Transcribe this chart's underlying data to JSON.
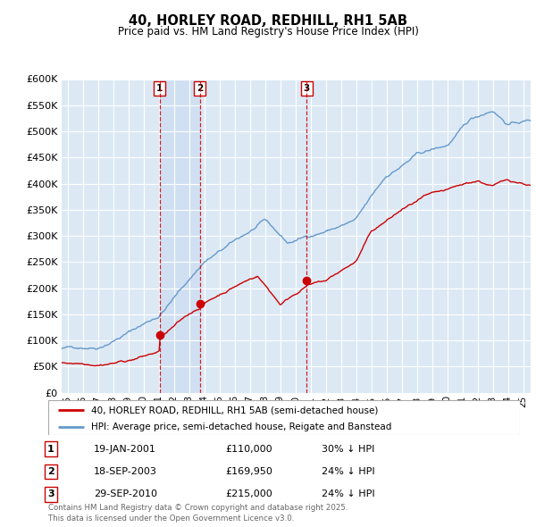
{
  "title": "40, HORLEY ROAD, REDHILL, RH1 5AB",
  "subtitle": "Price paid vs. HM Land Registry's House Price Index (HPI)",
  "legend_line1": "40, HORLEY ROAD, REDHILL, RH1 5AB (semi-detached house)",
  "legend_line2": "HPI: Average price, semi-detached house, Reigate and Banstead",
  "footer": "Contains HM Land Registry data © Crown copyright and database right 2025.\nThis data is licensed under the Open Government Licence v3.0.",
  "transactions": [
    {
      "num": 1,
      "date": "19-JAN-2001",
      "price": "£110,000",
      "hpi": "30% ↓ HPI",
      "year": 2001.05
    },
    {
      "num": 2,
      "date": "18-SEP-2003",
      "price": "£169,950",
      "hpi": "24% ↓ HPI",
      "year": 2003.72
    },
    {
      "num": 3,
      "date": "29-SEP-2010",
      "price": "£215,000",
      "hpi": "24% ↓ HPI",
      "year": 2010.75
    }
  ],
  "sale_points": [
    {
      "year": 2001.05,
      "price": 110000
    },
    {
      "year": 2003.72,
      "price": 169950
    },
    {
      "year": 2010.75,
      "price": 215000
    }
  ],
  "ylim": [
    0,
    600000
  ],
  "xlim": [
    1994.6,
    2025.5
  ],
  "background_color": "#dce9f5",
  "grid_color": "#ffffff",
  "red_line_color": "#cc0000",
  "blue_line_color": "#6699cc",
  "vline_color": "#cc0000",
  "shade_color": "#c8daf0"
}
